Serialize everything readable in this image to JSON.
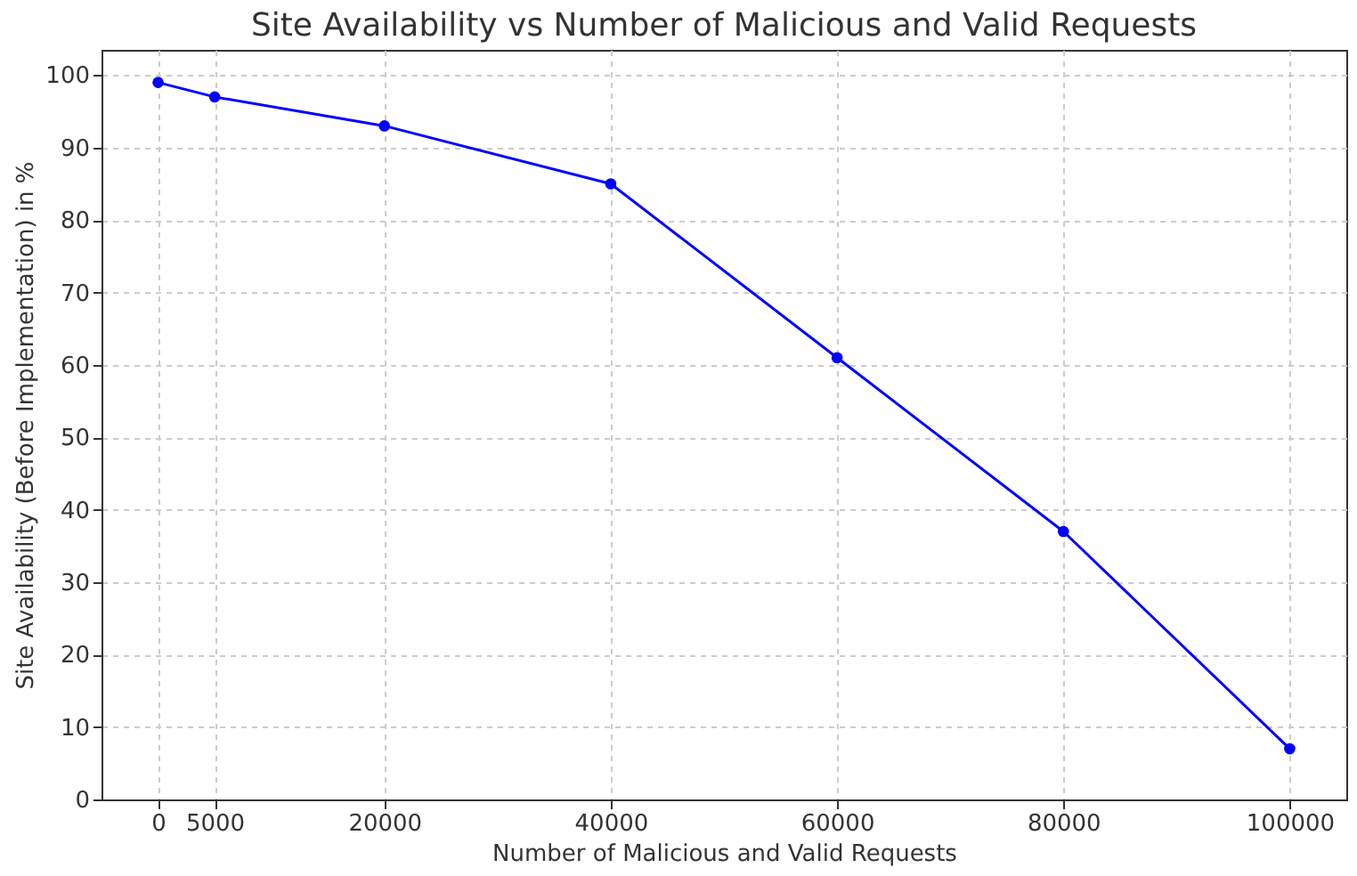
{
  "chart_data": {
    "type": "line",
    "title": "Site Availability vs Number of Malicious and Valid Requests",
    "xlabel": "Number of Malicious and Valid Requests",
    "ylabel": "Site Availability (Before Implementation) in %",
    "x": [
      0,
      5000,
      20000,
      40000,
      60000,
      80000,
      100000
    ],
    "series": [
      {
        "color": "#0000ff",
        "values": [
          99,
          97,
          93,
          85,
          61,
          37,
          7
        ]
      }
    ],
    "xlim": [
      -5000,
      105000
    ],
    "xticks": [
      0,
      5000,
      20000,
      40000,
      60000,
      80000,
      100000
    ],
    "ylim": [
      0,
      103.5
    ],
    "yticks": [
      0,
      10,
      20,
      30,
      40,
      50,
      60,
      70,
      80,
      90,
      100
    ],
    "grid": true,
    "marker": "circle",
    "line_style": "solid"
  }
}
